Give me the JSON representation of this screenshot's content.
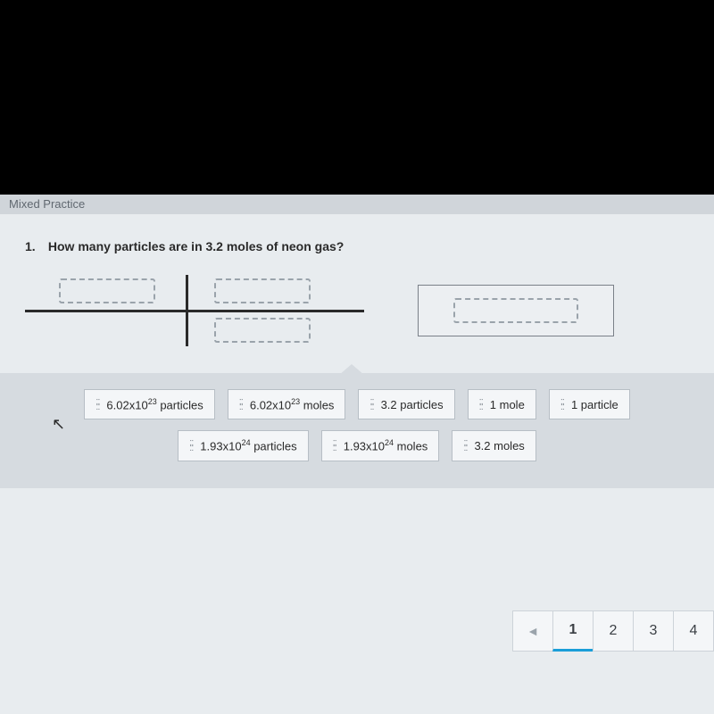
{
  "header": {
    "partial_text": "Mixed Practice"
  },
  "question": {
    "number": "1.",
    "text": "How many particles are in 3.2 moles of neon gas?"
  },
  "tiles_row1": [
    {
      "html": "6.02x10<sup>23</sup> particles"
    },
    {
      "html": "6.02x10<sup>23</sup> moles"
    },
    {
      "html": "3.2 particles"
    },
    {
      "html": "1 mole"
    },
    {
      "html": "1 particle"
    }
  ],
  "tiles_row2": [
    {
      "html": "1.93x10<sup>24</sup> particles"
    },
    {
      "html": "1.93x10<sup>24</sup> moles"
    },
    {
      "html": "3.2 moles"
    }
  ],
  "pagination": {
    "prev": "◄",
    "pages": [
      "1",
      "2",
      "3",
      "4"
    ],
    "active": "1"
  },
  "colors": {
    "page_bg": "#000000",
    "content_bg": "#e8ecef",
    "bank_bg": "#d6dbe0",
    "tile_bg": "#f4f6f8",
    "tile_border": "#b7bec5",
    "line": "#2a2a2a",
    "dash_border": "#9aa3ab",
    "active_underline": "#1a9ed8"
  }
}
